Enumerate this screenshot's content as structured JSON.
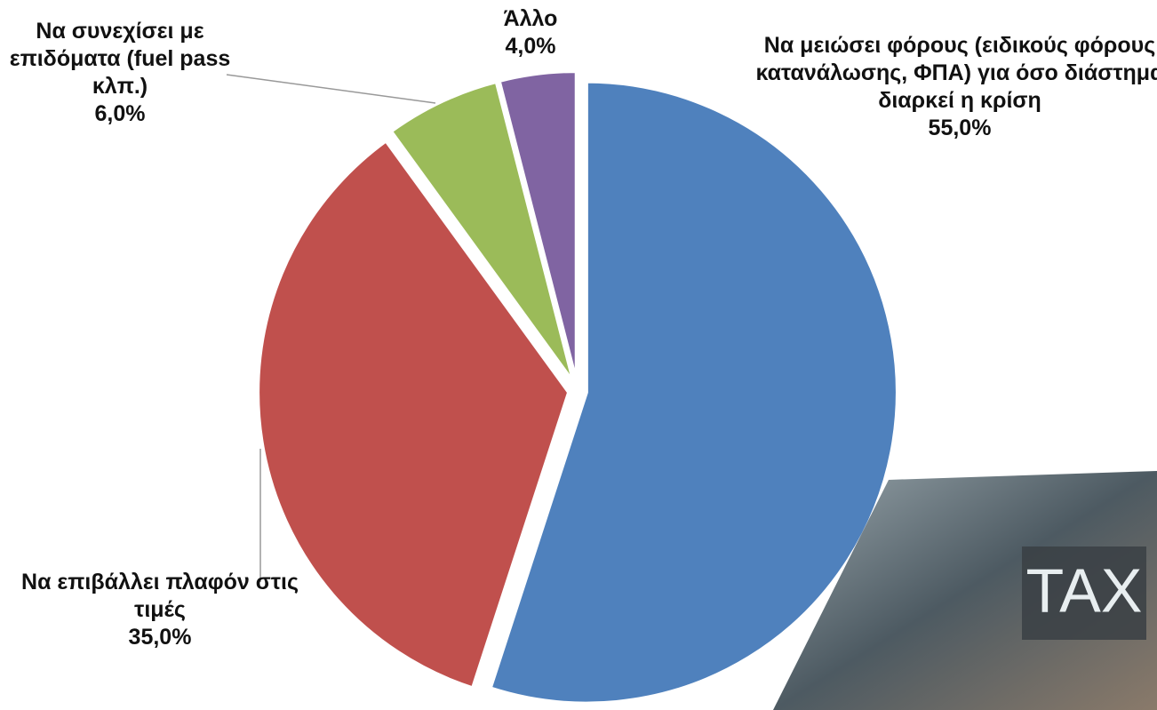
{
  "chart_data": {
    "type": "pie",
    "categories": [
      "Να μειώσει φόρους (ειδικούς φόρους κατανάλωσης, ΦΠΑ) για όσο διάστημα διαρκεί η κρίση",
      "Να επιβάλλει πλαφόν στις τιμές",
      "Να συνεχίσει με επιδόματα (fuel pass κλπ.)",
      "Άλλο"
    ],
    "values": [
      55.0,
      35.0,
      6.0,
      4.0
    ],
    "value_labels": [
      "55,0%",
      "35,0%",
      "6,0%",
      "4,0%"
    ],
    "colors": [
      "#4f81bd",
      "#c0504d",
      "#9bbb59",
      "#8064a2"
    ]
  },
  "image": {
    "text": "TAX"
  }
}
